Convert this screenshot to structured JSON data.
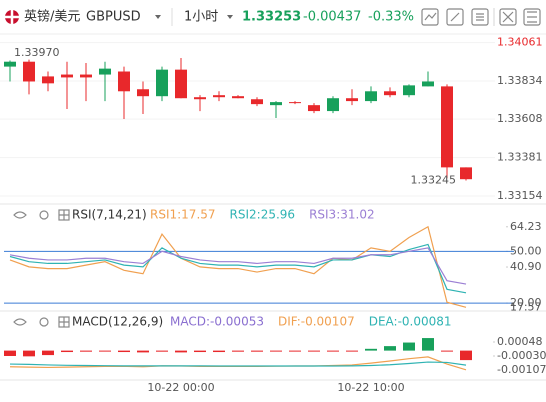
{
  "header": {
    "name": "英镑/美元",
    "symbol": "GBPUSD",
    "interval": "1小时",
    "price": "1.33253",
    "change": "-0.00437",
    "change_pct": "-0.33%"
  },
  "chart_data": [
    {
      "type": "candlestick",
      "up_color": "#17a05b",
      "down_color": "#e8282b",
      "open": [
        1.33919,
        1.33948,
        1.33861,
        1.33872,
        1.33872,
        1.33872,
        1.3389,
        1.33785,
        1.33744,
        1.33901,
        1.33738,
        1.3375,
        1.33744,
        1.33726,
        1.33691,
        1.33709,
        1.33691,
        1.33656,
        1.33732,
        1.33715,
        1.33773,
        1.3375,
        1.33802,
        1.33802,
        1.33323
      ],
      "high": [
        1.33955,
        1.3396,
        1.3389,
        1.33948,
        1.3394,
        1.33948,
        1.33919,
        1.33831,
        1.33919,
        1.3397,
        1.3375,
        1.33773,
        1.3375,
        1.33738,
        1.33715,
        1.33715,
        1.33703,
        1.33744,
        1.33785,
        1.33802,
        1.33796,
        1.33814,
        1.3389,
        1.33814,
        1.33323
      ],
      "low": [
        1.33831,
        1.33755,
        1.33773,
        1.33668,
        1.33715,
        1.33715,
        1.33609,
        1.33639,
        1.33715,
        1.33732,
        1.33656,
        1.33715,
        1.33732,
        1.33685,
        1.33615,
        1.33697,
        1.33644,
        1.33644,
        1.33691,
        1.33703,
        1.33738,
        1.33738,
        1.33802,
        1.33259,
        1.33245
      ],
      "close": [
        1.33948,
        1.33831,
        1.3382,
        1.33855,
        1.33855,
        1.33907,
        1.33773,
        1.33744,
        1.33901,
        1.33732,
        1.33726,
        1.33738,
        1.33732,
        1.33697,
        1.33709,
        1.33703,
        1.33656,
        1.33732,
        1.33715,
        1.33773,
        1.3375,
        1.33808,
        1.33831,
        1.33323,
        1.33253
      ],
      "ylim": [
        1.3313,
        1.341
      ],
      "yticks": [
        1.34061,
        1.33834,
        1.33608,
        1.33381,
        1.33154
      ],
      "grid": true,
      "markers": [
        {
          "value": 1.3397,
          "label": "1.33970"
        },
        {
          "value": 1.33245,
          "label": "1.33245"
        }
      ]
    },
    {
      "type": "line",
      "title": "RSI(7,14,21)",
      "ylim": [
        16,
        67
      ],
      "yticks": [
        64.23,
        {
          "value": 50,
          "label": "50.00"
        },
        {
          "value": 40.9,
          "label": "40.90"
        },
        {
          "value": 20,
          "label": "20.00"
        }
      ],
      "ref_lines": [
        50,
        20
      ],
      "ref_color": "#3a7bd5",
      "series": [
        {
          "name": "RSI1:17.57",
          "color": "#f0a050",
          "values": [
            45,
            41,
            40,
            40,
            42,
            44,
            39,
            37,
            60,
            46,
            41,
            40,
            40,
            38,
            40,
            40,
            37,
            46,
            45,
            52,
            50,
            58,
            64.23,
            20.5,
            17.57
          ]
        },
        {
          "name": "RSI2:25.96",
          "color": "#2fb3b3",
          "values": [
            47,
            44,
            43,
            43,
            44,
            45,
            42,
            41,
            52,
            46,
            43,
            42,
            42,
            41,
            42,
            42,
            41,
            45,
            45,
            48,
            47,
            51,
            54,
            28,
            25.96
          ]
        },
        {
          "name": "RSI3:31.02",
          "color": "#9b7fd4",
          "values": [
            48,
            46,
            45,
            45,
            46,
            46,
            44,
            43,
            50,
            47,
            45,
            44,
            44,
            43,
            44,
            44,
            43,
            46,
            46,
            48,
            48,
            50,
            52,
            33,
            31.02
          ]
        }
      ],
      "tags": [
        {
          "value": 17.57,
          "label": "17.57"
        }
      ]
    },
    {
      "type": "macd",
      "title": "MACD(12,26,9)",
      "ylim": [
        -0.00164,
        0.00115
      ],
      "yticks": [
        0.00048,
        {
          "value": -0.0003,
          "label": "-0.00030"
        }
      ],
      "categories": [
        null,
        null,
        null,
        null,
        null,
        null,
        null,
        null,
        null,
        "10-22 00:00",
        null,
        null,
        null,
        null,
        null,
        null,
        null,
        null,
        null,
        "10-22 10:00",
        null,
        null,
        null,
        null,
        null
      ],
      "series": [
        {
          "name": "MACD:-0.00053",
          "kind": "bar",
          "color": "#8a6fd0",
          "up_color": "#17a05b",
          "down_color": "#e8282b",
          "values": [
            -0.0003,
            -0.00032,
            -0.00025,
            -8e-05,
            -6e-05,
            -5e-05,
            -8e-05,
            -0.0001,
            -6e-05,
            -0.0001,
            -8e-05,
            -8e-05,
            -6e-05,
            -6e-05,
            -5e-05,
            -4e-05,
            -4e-05,
            -2e-05,
            -2e-05,
            0.0001,
            0.00025,
            0.00045,
            0.0007,
            -5e-05,
            -0.00053
          ]
        },
        {
          "name": "DIF:-0.00107",
          "kind": "line",
          "color": "#f0a050",
          "values": [
            -0.0009,
            -0.00092,
            -0.00094,
            -0.00092,
            -0.0009,
            -0.00088,
            -0.00088,
            -0.0009,
            -0.00085,
            -0.00086,
            -0.00088,
            -0.00088,
            -0.00088,
            -0.00088,
            -0.00087,
            -0.00086,
            -0.00086,
            -0.00083,
            -0.0008,
            -0.0007,
            -0.00058,
            -0.00045,
            -0.00035,
            -0.00075,
            -0.00107
          ]
        },
        {
          "name": "DEA:-0.00081",
          "kind": "line",
          "color": "#2fb3b3",
          "values": [
            -0.00075,
            -0.00077,
            -0.0008,
            -0.00082,
            -0.00083,
            -0.00084,
            -0.00085,
            -0.00085,
            -0.00085,
            -0.00085,
            -0.00085,
            -0.00086,
            -0.00086,
            -0.00086,
            -0.00086,
            -0.00086,
            -0.00086,
            -0.00086,
            -0.00085,
            -0.00083,
            -0.00079,
            -0.00072,
            -0.00064,
            -0.00066,
            -0.00081
          ]
        }
      ],
      "tags": [
        {
          "value": -0.00107,
          "label": "-0.00107"
        }
      ]
    }
  ]
}
